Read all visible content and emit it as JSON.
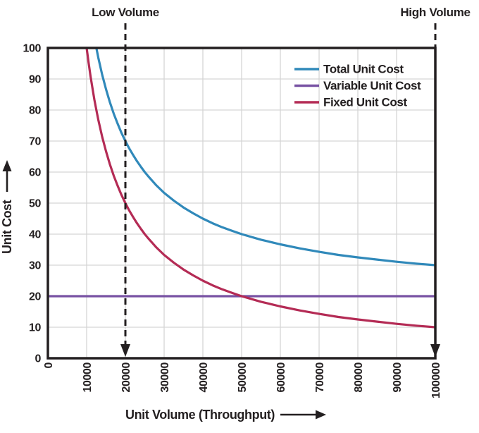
{
  "colors": {
    "axis": "#231f20",
    "text": "#231f20",
    "grid": "#d5d5d5",
    "background": "#ffffff"
  },
  "chart_data": {
    "type": "line",
    "title": "",
    "xlabel": "Unit Volume (Throughput)",
    "ylabel": "Unit Cost",
    "xlim": [
      0,
      100000
    ],
    "ylim": [
      0,
      100
    ],
    "grid": true,
    "legend_position": "top-right",
    "x_ticks": [
      0,
      10000,
      20000,
      30000,
      40000,
      50000,
      60000,
      70000,
      80000,
      90000,
      100000
    ],
    "y_ticks": [
      0,
      10,
      20,
      30,
      40,
      50,
      60,
      70,
      80,
      90,
      100
    ],
    "annotations": [
      {
        "label": "Low Volume",
        "x": 20000,
        "style": "dashed-vertical-down-arrow"
      },
      {
        "label": "High Volume",
        "x": 100000,
        "style": "dashed-vertical-down-arrow"
      }
    ],
    "series": [
      {
        "name": "Total Unit Cost",
        "color": "#3089ba",
        "x": [
          12500,
          13000,
          14000,
          15000,
          16000,
          17000,
          18000,
          19000,
          20000,
          21000,
          22000,
          23000,
          24000,
          25000,
          26000,
          28000,
          30000,
          32500,
          35000,
          37500,
          40000,
          42500,
          45000,
          47500,
          50000,
          55000,
          60000,
          65000,
          70000,
          75000,
          80000,
          85000,
          90000,
          95000,
          100000
        ],
        "y": [
          100,
          96.9,
          91.4,
          86.7,
          82.5,
          78.8,
          75.6,
          72.6,
          70,
          67.6,
          65.5,
          63.5,
          61.7,
          60,
          58.5,
          55.7,
          53.3,
          50.8,
          48.6,
          46.7,
          45,
          43.5,
          42.2,
          41.1,
          40,
          38.2,
          36.7,
          35.4,
          34.3,
          33.3,
          32.5,
          31.8,
          31.1,
          30.5,
          30
        ]
      },
      {
        "name": "Variable Unit Cost",
        "color": "#7852a3",
        "x": [
          0,
          100000
        ],
        "y": [
          20,
          20
        ]
      },
      {
        "name": "Fixed Unit Cost",
        "color": "#b42b55",
        "x": [
          10000,
          10500,
          11000,
          11500,
          12000,
          12500,
          13000,
          14000,
          15000,
          16000,
          17000,
          18000,
          19000,
          20000,
          21000,
          22000,
          23000,
          24000,
          25000,
          26000,
          28000,
          30000,
          32500,
          35000,
          37500,
          40000,
          42500,
          45000,
          47500,
          50000,
          55000,
          60000,
          65000,
          70000,
          75000,
          80000,
          85000,
          90000,
          95000,
          100000
        ],
        "y": [
          100,
          95.2,
          90.9,
          87,
          83.3,
          80,
          76.9,
          71.4,
          66.7,
          62.5,
          58.8,
          55.6,
          52.6,
          50,
          47.6,
          45.5,
          43.5,
          41.7,
          40,
          38.5,
          35.7,
          33.3,
          30.8,
          28.6,
          26.7,
          25,
          23.5,
          22.2,
          21.1,
          20,
          18.2,
          16.7,
          15.4,
          14.3,
          13.3,
          12.5,
          11.8,
          11.1,
          10.5,
          10
        ]
      }
    ]
  }
}
